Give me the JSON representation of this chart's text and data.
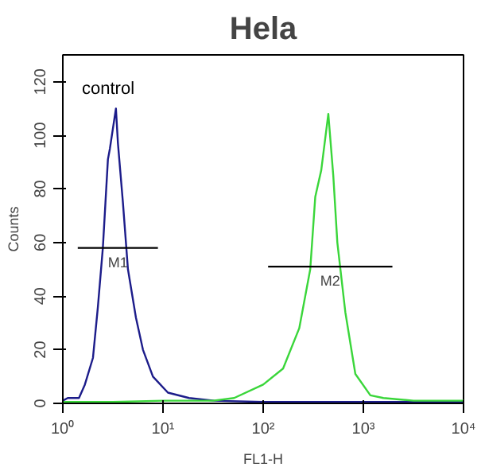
{
  "chart_data": {
    "type": "line",
    "title": "Hela",
    "xlabel": "FL1-H",
    "ylabel": "Counts",
    "log": "x",
    "grid": false,
    "marker": "none",
    "line_style": "solid",
    "xlim": [
      1,
      10000
    ],
    "ylim": [
      0,
      130
    ],
    "xticks": [
      {
        "value": 1,
        "label": "10⁰"
      },
      {
        "value": 10,
        "label": "10¹"
      },
      {
        "value": 100,
        "label": "10²"
      },
      {
        "value": 1000,
        "label": "10³"
      },
      {
        "value": 10000,
        "label": "10⁴"
      }
    ],
    "yticks": [
      0,
      20,
      40,
      60,
      80,
      100,
      120
    ],
    "series": [
      {
        "name": "control",
        "color": "#1c1c8a",
        "x": [
          1,
          1.12,
          1.45,
          1.66,
          2.0,
          2.24,
          2.51,
          2.82,
          2.95,
          3.39,
          3.55,
          3.98,
          4.47,
          5.37,
          6.31,
          7.94,
          11.2,
          18.2,
          32.4,
          100,
          316,
          1000,
          3162,
          10000
        ],
        "values": [
          1,
          2,
          2,
          7,
          17,
          36,
          58,
          91,
          95,
          110,
          97,
          75,
          50,
          32,
          20,
          10,
          4,
          2,
          1,
          0.5,
          0.5,
          0.5,
          0.5,
          0.5
        ]
      },
      {
        "color": "#3ad63a",
        "x": [
          1,
          3.16,
          10,
          31.6,
          51.3,
          100,
          158,
          229,
          295,
          331,
          380,
          447,
          501,
          550,
          661,
          832,
          1175,
          1585,
          3162,
          10000
        ],
        "values": [
          0.5,
          0.5,
          1,
          1,
          2,
          7,
          13,
          28,
          50,
          77,
          87,
          108,
          85,
          60,
          34,
          11,
          3,
          2,
          1,
          1
        ]
      },
      {
        "color": "#000000",
        "x": [
          1.41,
          8.9
        ],
        "values": [
          58,
          58
        ]
      },
      {
        "color": "#000000",
        "x": [
          112,
          1950
        ],
        "values": [
          51,
          51
        ]
      }
    ],
    "annotations": [
      {
        "text": "M1",
        "x": 3.54,
        "y": 58
      },
      {
        "text": "M2",
        "x": 467,
        "y": 51
      }
    ]
  }
}
